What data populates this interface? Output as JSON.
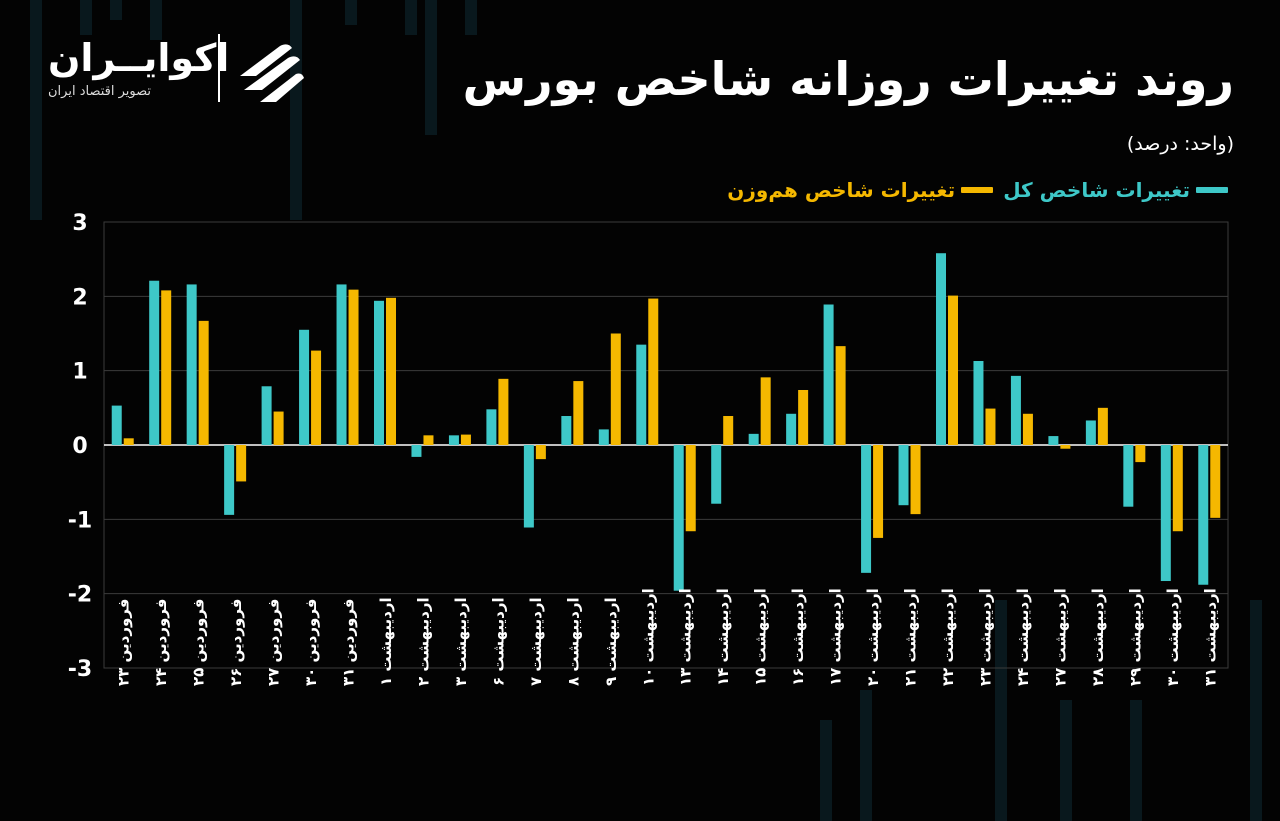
{
  "title": "روند تغییرات روزانه شاخص بورس",
  "unit": "(واحد: درصد)",
  "logo": {
    "brand": "اکوایــران",
    "tagline": "تصویر اقتصاد ایران"
  },
  "colors": {
    "background": "#030303",
    "grid": "#3b3b3b",
    "series_total": "#3ec8c8",
    "series_equal": "#f5b800"
  },
  "chart_data": {
    "type": "bar",
    "ylim": [
      -3,
      3
    ],
    "yticks": [
      "3",
      "2",
      "1",
      "0",
      "-1",
      "-2",
      "-3"
    ],
    "ytick_values": [
      3,
      2,
      1,
      0,
      -1,
      -2,
      -3
    ],
    "grid": true,
    "legend_position": "top-right",
    "categories": [
      "فروردین ۲۳",
      "فروردین ۲۴",
      "فروردین ۲۵",
      "فروردین ۲۶",
      "فروردین ۲۷",
      "فروردین ۳۰",
      "فروردین ۳۱",
      "اردیبهشت ۱",
      "اردیبهشت ۲",
      "اردیبهشت ۳",
      "اردیبهشت ۶",
      "اردیبهشت ۷",
      "اردیبهشت ۸",
      "اردیبهشت ۹",
      "اردیبهشت ۱۰",
      "اردیبهشت ۱۳",
      "اردیبهشت ۱۴",
      "اردیبهشت ۱۵",
      "اردیبهشت ۱۶",
      "اردیبهشت ۱۷",
      "اردیبهشت ۲۰",
      "اردیبهشت ۲۱",
      "اردیبهشت ۲۲",
      "اردیبهشت ۲۳",
      "اردیبهشت ۲۴",
      "اردیبهشت ۲۷",
      "اردیبهشت ۲۸",
      "اردیبهشت ۲۹",
      "اردیبهشت ۳۰",
      "اردیبهشت ۳۱"
    ],
    "series": [
      {
        "name": "تغییرات شاخص کل",
        "color": "#3ec8c8",
        "values": [
          0.53,
          2.21,
          2.16,
          -0.94,
          0.79,
          1.55,
          2.16,
          1.94,
          -0.16,
          0.13,
          0.48,
          -1.11,
          0.39,
          0.21,
          1.35,
          -1.96,
          -0.79,
          0.15,
          0.42,
          1.89,
          -1.72,
          -0.81,
          2.58,
          1.13,
          0.93,
          0.12,
          0.33,
          -0.83,
          -1.83,
          -1.88
        ]
      },
      {
        "name": "تغییرات شاخص هم‌وزن",
        "color": "#f5b800",
        "values": [
          0.09,
          2.08,
          1.67,
          -0.49,
          0.45,
          1.27,
          2.09,
          1.98,
          0.13,
          0.14,
          0.89,
          -0.19,
          0.86,
          1.5,
          1.97,
          -1.16,
          0.39,
          0.91,
          0.74,
          1.33,
          -1.25,
          -0.93,
          2.01,
          0.49,
          0.42,
          -0.05,
          0.5,
          -0.23,
          -1.16,
          -0.98
        ]
      }
    ]
  }
}
